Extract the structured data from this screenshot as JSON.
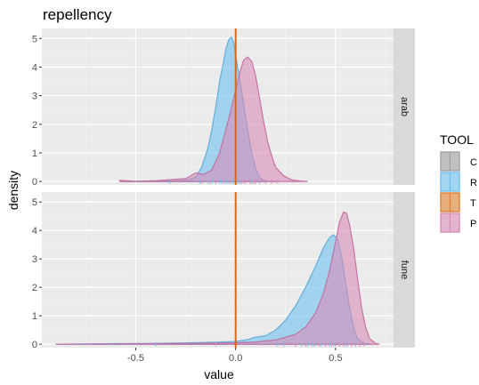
{
  "chart_data": {
    "type": "area",
    "title": "repellency",
    "xlabel": "value",
    "ylabel": "density",
    "xlim": [
      -0.97,
      0.79
    ],
    "ylim": [
      -0.12,
      5.35
    ],
    "x_ticks": [
      -0.5,
      0.0,
      0.5
    ],
    "x_tick_labels": [
      "-0.5",
      "0.0",
      "0.5"
    ],
    "y_ticks": [
      0,
      1,
      2,
      3,
      4,
      5
    ],
    "y_tick_labels": [
      "0",
      "1",
      "2",
      "3",
      "4",
      "5"
    ],
    "grid": true,
    "vline": {
      "x": 0.0,
      "color": "#d2691e"
    },
    "legend": {
      "title": "TOOL",
      "position": "right",
      "entries": [
        {
          "label": "C",
          "color": "#a0a0a0"
        },
        {
          "label": "R",
          "color": "#6ec1ef"
        },
        {
          "label": "T",
          "color": "#e08030"
        },
        {
          "label": "P",
          "color": "#d98cb6"
        }
      ]
    },
    "panels": [
      {
        "strip": "arab",
        "series": [
          {
            "name": "R",
            "color": "#6ec1ef",
            "stroke": "#5aa8d6",
            "points": [
              [
                -0.57,
                0
              ],
              [
                -0.45,
                0.01
              ],
              [
                -0.3,
                0.02
              ],
              [
                -0.24,
                0.05
              ],
              [
                -0.2,
                0.15
              ],
              [
                -0.17,
                0.5
              ],
              [
                -0.14,
                1.15
              ],
              [
                -0.12,
                1.8
              ],
              [
                -0.1,
                2.6
              ],
              [
                -0.08,
                3.5
              ],
              [
                -0.06,
                4.2
              ],
              [
                -0.05,
                4.6
              ],
              [
                -0.035,
                4.95
              ],
              [
                -0.02,
                5.05
              ],
              [
                -0.01,
                4.85
              ],
              [
                0.0,
                4.4
              ],
              [
                0.02,
                3.6
              ],
              [
                0.04,
                2.7
              ],
              [
                0.06,
                1.8
              ],
              [
                0.08,
                1.0
              ],
              [
                0.1,
                0.45
              ],
              [
                0.12,
                0.15
              ],
              [
                0.14,
                0.04
              ],
              [
                0.16,
                0.01
              ],
              [
                0.2,
                0
              ]
            ],
            "rug": [
              -0.33,
              -0.18,
              -0.14,
              -0.12,
              -0.1,
              -0.08,
              -0.07,
              -0.05,
              -0.04,
              -0.03,
              -0.02,
              -0.01,
              0.01,
              0.02,
              0.03,
              0.05,
              0.08
            ]
          },
          {
            "name": "P",
            "color": "#d98cb6",
            "stroke": "#c06aa0",
            "points": [
              [
                -0.58,
                0.04
              ],
              [
                -0.5,
                0.01
              ],
              [
                -0.4,
                0.03
              ],
              [
                -0.3,
                0.08
              ],
              [
                -0.25,
                0.1
              ],
              [
                -0.2,
                0.3
              ],
              [
                -0.16,
                0.25
              ],
              [
                -0.12,
                0.4
              ],
              [
                -0.08,
                1.0
              ],
              [
                -0.05,
                1.8
              ],
              [
                -0.02,
                2.6
              ],
              [
                0.0,
                3.2
              ],
              [
                0.02,
                3.8
              ],
              [
                0.04,
                4.25
              ],
              [
                0.06,
                4.35
              ],
              [
                0.08,
                4.2
              ],
              [
                0.1,
                3.7
              ],
              [
                0.12,
                2.9
              ],
              [
                0.14,
                2.1
              ],
              [
                0.16,
                1.4
              ],
              [
                0.18,
                0.9
              ],
              [
                0.2,
                0.5
              ],
              [
                0.24,
                0.2
              ],
              [
                0.28,
                0.06
              ],
              [
                0.32,
                0.02
              ],
              [
                0.36,
                0
              ]
            ],
            "rug": [
              -0.17,
              -0.13,
              -0.1,
              -0.06,
              -0.03,
              0.0,
              0.02,
              0.04,
              0.05,
              0.07,
              0.09,
              0.1,
              0.12,
              0.15,
              0.18,
              0.21
            ]
          }
        ]
      },
      {
        "strip": "fune",
        "series": [
          {
            "name": "R",
            "color": "#6ec1ef",
            "stroke": "#5aa8d6",
            "points": [
              [
                -0.9,
                0
              ],
              [
                -0.6,
                0.02
              ],
              [
                -0.4,
                0.03
              ],
              [
                -0.25,
                0.05
              ],
              [
                -0.1,
                0.07
              ],
              [
                0.0,
                0.1
              ],
              [
                0.05,
                0.15
              ],
              [
                0.1,
                0.25
              ],
              [
                0.15,
                0.3
              ],
              [
                0.2,
                0.5
              ],
              [
                0.25,
                0.85
              ],
              [
                0.3,
                1.35
              ],
              [
                0.35,
                2.0
              ],
              [
                0.4,
                2.75
              ],
              [
                0.44,
                3.4
              ],
              [
                0.47,
                3.75
              ],
              [
                0.49,
                3.85
              ],
              [
                0.51,
                3.7
              ],
              [
                0.53,
                3.1
              ],
              [
                0.55,
                2.2
              ],
              [
                0.57,
                1.3
              ],
              [
                0.59,
                0.6
              ],
              [
                0.61,
                0.2
              ],
              [
                0.64,
                0.04
              ],
              [
                0.68,
                0
              ]
            ],
            "rug": [
              -0.4,
              0.21,
              0.24,
              0.3,
              0.33,
              0.36,
              0.38,
              0.4,
              0.43,
              0.45,
              0.47,
              0.49,
              0.52,
              0.55
            ]
          },
          {
            "name": "P",
            "color": "#d98cb6",
            "stroke": "#c06aa0",
            "points": [
              [
                -0.9,
                0
              ],
              [
                -0.6,
                0.01
              ],
              [
                -0.4,
                0.02
              ],
              [
                -0.2,
                0.03
              ],
              [
                0.0,
                0.05
              ],
              [
                0.1,
                0.08
              ],
              [
                0.2,
                0.15
              ],
              [
                0.3,
                0.35
              ],
              [
                0.35,
                0.6
              ],
              [
                0.4,
                1.1
              ],
              [
                0.44,
                1.8
              ],
              [
                0.47,
                2.6
              ],
              [
                0.5,
                3.6
              ],
              [
                0.52,
                4.3
              ],
              [
                0.54,
                4.65
              ],
              [
                0.555,
                4.6
              ],
              [
                0.57,
                4.2
              ],
              [
                0.59,
                3.4
              ],
              [
                0.61,
                2.3
              ],
              [
                0.63,
                1.3
              ],
              [
                0.65,
                0.6
              ],
              [
                0.67,
                0.2
              ],
              [
                0.7,
                0.03
              ],
              [
                0.72,
                0
              ]
            ],
            "rug": [
              -0.1,
              0.3,
              0.35,
              0.39,
              0.42,
              0.45,
              0.48,
              0.5,
              0.52,
              0.54,
              0.56,
              0.58,
              0.6,
              0.62,
              0.64
            ]
          }
        ]
      }
    ]
  }
}
